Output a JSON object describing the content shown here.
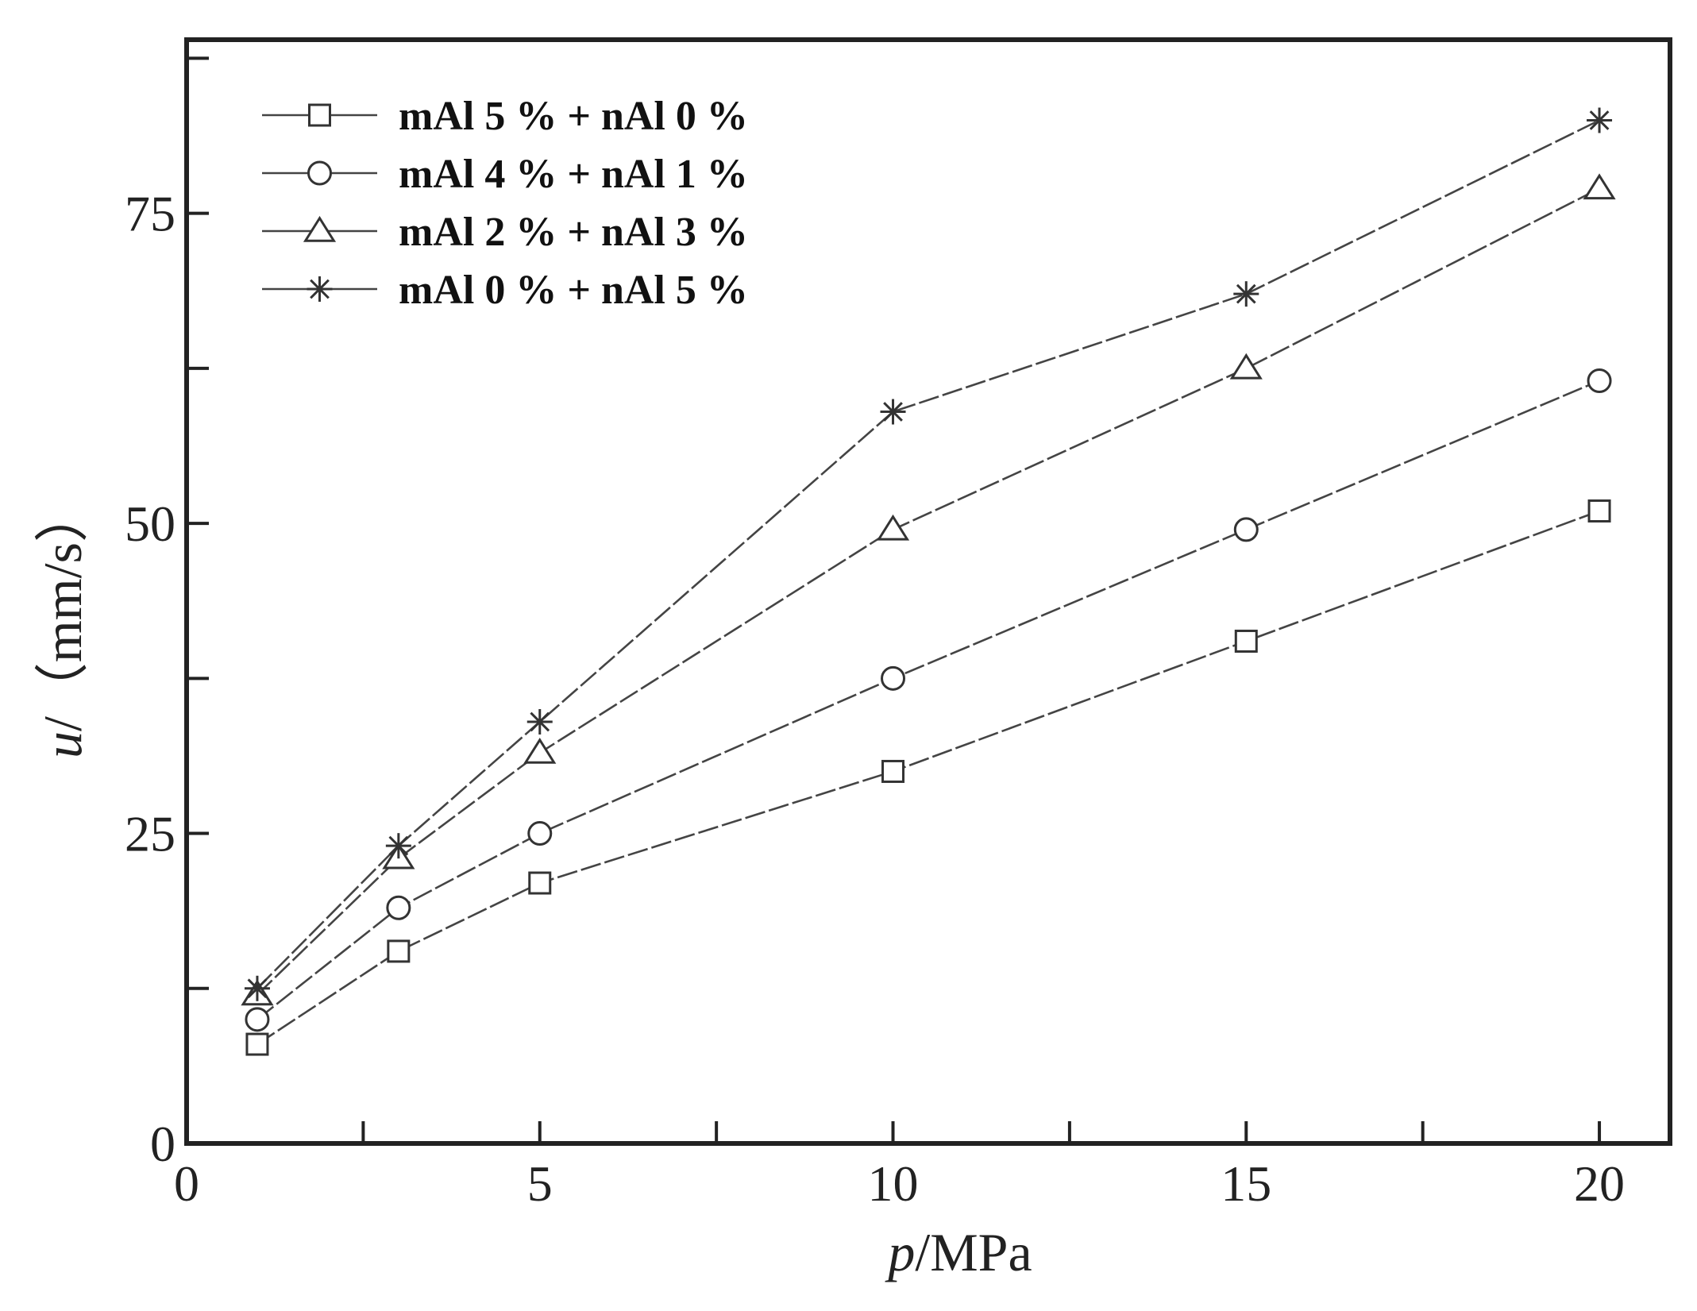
{
  "chart_data": {
    "type": "line",
    "title": "",
    "xlabel": "p/MPa",
    "xlabel_italic": "p",
    "xlabel_rest": "/MPa",
    "ylabel": "u/（mm/s）",
    "ylabel_italic": "u",
    "ylabel_rest": "/（mm/s）",
    "xlim": [
      0,
      21
    ],
    "ylim": [
      0,
      89
    ],
    "x_major_ticks": [
      0,
      5,
      10,
      15,
      20
    ],
    "x_minor_ticks": [
      2.5,
      7.5,
      12.5,
      17.5
    ],
    "y_major_ticks": [
      0,
      25,
      50,
      75
    ],
    "y_minor_ticks": [
      12.5,
      37.5,
      62.5,
      87.5
    ],
    "grid": false,
    "legend_position": "top-left",
    "x": [
      1,
      3,
      5,
      10,
      15,
      20
    ],
    "series": [
      {
        "name": "mAl 5 % + nAl 0 %",
        "marker": "square",
        "values": [
          8.0,
          15.5,
          21.0,
          30.0,
          40.5,
          51.0
        ]
      },
      {
        "name": "mAl 4 % + nAl 1 %",
        "marker": "circle",
        "values": [
          10.0,
          19.0,
          25.0,
          37.5,
          49.5,
          61.5
        ]
      },
      {
        "name": "mAl 2 % + nAl 3 %",
        "marker": "triangle",
        "values": [
          12.0,
          23.0,
          31.5,
          49.5,
          62.5,
          77.0
        ]
      },
      {
        "name": "mAl 0 % + nAl 5 %",
        "marker": "star",
        "values": [
          12.5,
          24.0,
          34.0,
          59.0,
          68.5,
          82.5
        ]
      }
    ]
  }
}
